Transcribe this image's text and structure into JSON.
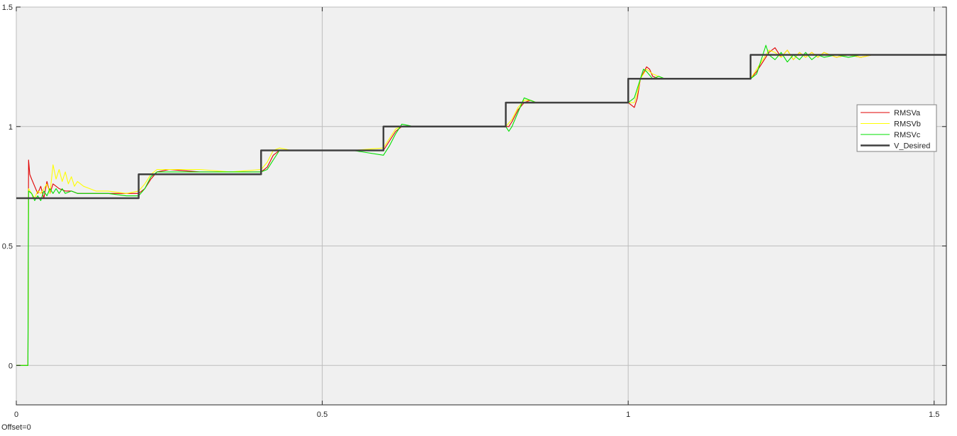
{
  "chart_data": {
    "type": "line",
    "title": "",
    "xlabel": "",
    "ylabel": "",
    "xlim": [
      0,
      1.52
    ],
    "ylim": [
      -0.165,
      1.5
    ],
    "x_ticks": [
      {
        "value": 0,
        "label": "0"
      },
      {
        "value": 0.5,
        "label": "0.5"
      },
      {
        "value": 1,
        "label": "1"
      },
      {
        "value": 1.5,
        "label": "1.5"
      }
    ],
    "y_ticks": [
      {
        "value": 0,
        "label": "0"
      },
      {
        "value": 0.5,
        "label": "0.5"
      },
      {
        "value": 1,
        "label": "1"
      },
      {
        "value": 1.5,
        "label": "1.5"
      }
    ],
    "grid": true,
    "background_color": "#f0f0f0",
    "legend_position": "right",
    "series": [
      {
        "name": "RMSVa",
        "color": "#e00000",
        "x": [
          0,
          0.019,
          0.02,
          0.022,
          0.025,
          0.03,
          0.035,
          0.04,
          0.045,
          0.05,
          0.055,
          0.06,
          0.07,
          0.08,
          0.09,
          0.1,
          0.12,
          0.15,
          0.18,
          0.2,
          0.21,
          0.22,
          0.23,
          0.25,
          0.3,
          0.35,
          0.4,
          0.41,
          0.42,
          0.43,
          0.45,
          0.5,
          0.55,
          0.6,
          0.61,
          0.62,
          0.63,
          0.65,
          0.7,
          0.8,
          0.805,
          0.81,
          0.82,
          0.83,
          0.84,
          0.85,
          0.9,
          1.0,
          1.01,
          1.015,
          1.02,
          1.03,
          1.035,
          1.04,
          1.05,
          1.06,
          1.08,
          1.1,
          1.2,
          1.21,
          1.22,
          1.23,
          1.24,
          1.25,
          1.26,
          1.27,
          1.28,
          1.29,
          1.3,
          1.31,
          1.32,
          1.34,
          1.36,
          1.38,
          1.4,
          1.45,
          1.52
        ],
        "y": [
          0,
          0,
          0.86,
          0.8,
          0.78,
          0.75,
          0.72,
          0.75,
          0.7,
          0.77,
          0.72,
          0.76,
          0.74,
          0.73,
          0.73,
          0.72,
          0.72,
          0.72,
          0.72,
          0.72,
          0.74,
          0.78,
          0.81,
          0.82,
          0.81,
          0.81,
          0.81,
          0.83,
          0.88,
          0.9,
          0.9,
          0.9,
          0.9,
          0.9,
          0.94,
          0.98,
          1.0,
          1.0,
          1.0,
          1.0,
          1.0,
          1.02,
          1.07,
          1.1,
          1.11,
          1.1,
          1.1,
          1.1,
          1.08,
          1.12,
          1.2,
          1.25,
          1.24,
          1.21,
          1.2,
          1.2,
          1.2,
          1.2,
          1.2,
          1.23,
          1.27,
          1.31,
          1.33,
          1.29,
          1.32,
          1.28,
          1.31,
          1.29,
          1.31,
          1.29,
          1.31,
          1.29,
          1.3,
          1.29,
          1.3,
          1.3,
          1.3
        ]
      },
      {
        "name": "RMSVb",
        "color": "#ffff00",
        "x": [
          0,
          0.019,
          0.02,
          0.025,
          0.03,
          0.035,
          0.04,
          0.05,
          0.055,
          0.06,
          0.065,
          0.07,
          0.075,
          0.08,
          0.085,
          0.09,
          0.095,
          0.1,
          0.11,
          0.12,
          0.13,
          0.15,
          0.18,
          0.2,
          0.21,
          0.22,
          0.23,
          0.25,
          0.3,
          0.35,
          0.4,
          0.41,
          0.42,
          0.43,
          0.45,
          0.5,
          0.55,
          0.6,
          0.61,
          0.62,
          0.63,
          0.65,
          0.7,
          0.8,
          0.81,
          0.82,
          0.83,
          0.84,
          0.85,
          0.9,
          1.0,
          1.01,
          1.015,
          1.02,
          1.03,
          1.04,
          1.05,
          1.06,
          1.08,
          1.1,
          1.2,
          1.21,
          1.22,
          1.23,
          1.24,
          1.25,
          1.26,
          1.27,
          1.28,
          1.29,
          1.3,
          1.31,
          1.32,
          1.34,
          1.36,
          1.38,
          1.4,
          1.45,
          1.52
        ],
        "y": [
          0,
          0,
          0.74,
          0.72,
          0.7,
          0.73,
          0.72,
          0.76,
          0.72,
          0.84,
          0.78,
          0.82,
          0.77,
          0.81,
          0.76,
          0.79,
          0.75,
          0.77,
          0.75,
          0.74,
          0.73,
          0.73,
          0.72,
          0.73,
          0.76,
          0.8,
          0.82,
          0.82,
          0.82,
          0.81,
          0.82,
          0.85,
          0.9,
          0.91,
          0.9,
          0.9,
          0.9,
          0.91,
          0.95,
          0.99,
          1.0,
          1.0,
          1.0,
          1.0,
          1.03,
          1.08,
          1.11,
          1.11,
          1.1,
          1.1,
          1.1,
          1.1,
          1.14,
          1.2,
          1.24,
          1.22,
          1.21,
          1.2,
          1.2,
          1.2,
          1.2,
          1.24,
          1.28,
          1.32,
          1.31,
          1.29,
          1.32,
          1.28,
          1.31,
          1.29,
          1.31,
          1.29,
          1.31,
          1.29,
          1.3,
          1.29,
          1.3,
          1.3,
          1.3
        ]
      },
      {
        "name": "RMSVc",
        "color": "#00e000",
        "x": [
          0,
          0.019,
          0.0195,
          0.02,
          0.025,
          0.03,
          0.035,
          0.04,
          0.045,
          0.05,
          0.055,
          0.06,
          0.065,
          0.07,
          0.075,
          0.08,
          0.09,
          0.1,
          0.12,
          0.15,
          0.18,
          0.2,
          0.21,
          0.22,
          0.23,
          0.25,
          0.3,
          0.35,
          0.4,
          0.41,
          0.42,
          0.43,
          0.45,
          0.5,
          0.55,
          0.6,
          0.61,
          0.62,
          0.63,
          0.65,
          0.7,
          0.8,
          0.805,
          0.81,
          0.82,
          0.83,
          0.84,
          0.85,
          0.9,
          1.0,
          1.01,
          1.02,
          1.025,
          1.03,
          1.04,
          1.05,
          1.06,
          1.08,
          1.1,
          1.2,
          1.21,
          1.22,
          1.225,
          1.23,
          1.24,
          1.25,
          1.26,
          1.27,
          1.28,
          1.29,
          1.3,
          1.31,
          1.32,
          1.34,
          1.36,
          1.38,
          1.4,
          1.45,
          1.52
        ],
        "y": [
          0,
          0,
          0.35,
          0.73,
          0.72,
          0.69,
          0.71,
          0.69,
          0.73,
          0.71,
          0.74,
          0.72,
          0.74,
          0.72,
          0.74,
          0.72,
          0.73,
          0.72,
          0.72,
          0.72,
          0.71,
          0.71,
          0.74,
          0.79,
          0.81,
          0.81,
          0.81,
          0.81,
          0.81,
          0.82,
          0.86,
          0.9,
          0.9,
          0.9,
          0.9,
          0.88,
          0.92,
          0.97,
          1.01,
          1.0,
          1.0,
          1.0,
          0.98,
          1.0,
          1.06,
          1.12,
          1.11,
          1.1,
          1.1,
          1.1,
          1.12,
          1.2,
          1.24,
          1.23,
          1.2,
          1.21,
          1.2,
          1.2,
          1.2,
          1.2,
          1.22,
          1.3,
          1.34,
          1.3,
          1.28,
          1.31,
          1.27,
          1.3,
          1.28,
          1.31,
          1.28,
          1.3,
          1.29,
          1.3,
          1.29,
          1.3,
          1.3,
          1.3,
          1.3
        ]
      },
      {
        "name": "V_Desired",
        "color": "#404040",
        "x": [
          0,
          0.2,
          0.2,
          0.4,
          0.4,
          0.6,
          0.6,
          0.8,
          0.8,
          1.0,
          1.0,
          1.2,
          1.2,
          1.52
        ],
        "y": [
          0.7,
          0.7,
          0.8,
          0.8,
          0.9,
          0.9,
          1.0,
          1.0,
          1.1,
          1.1,
          1.2,
          1.2,
          1.3,
          1.3
        ]
      }
    ],
    "annotations": {
      "offset_text": "Offset=0"
    }
  }
}
